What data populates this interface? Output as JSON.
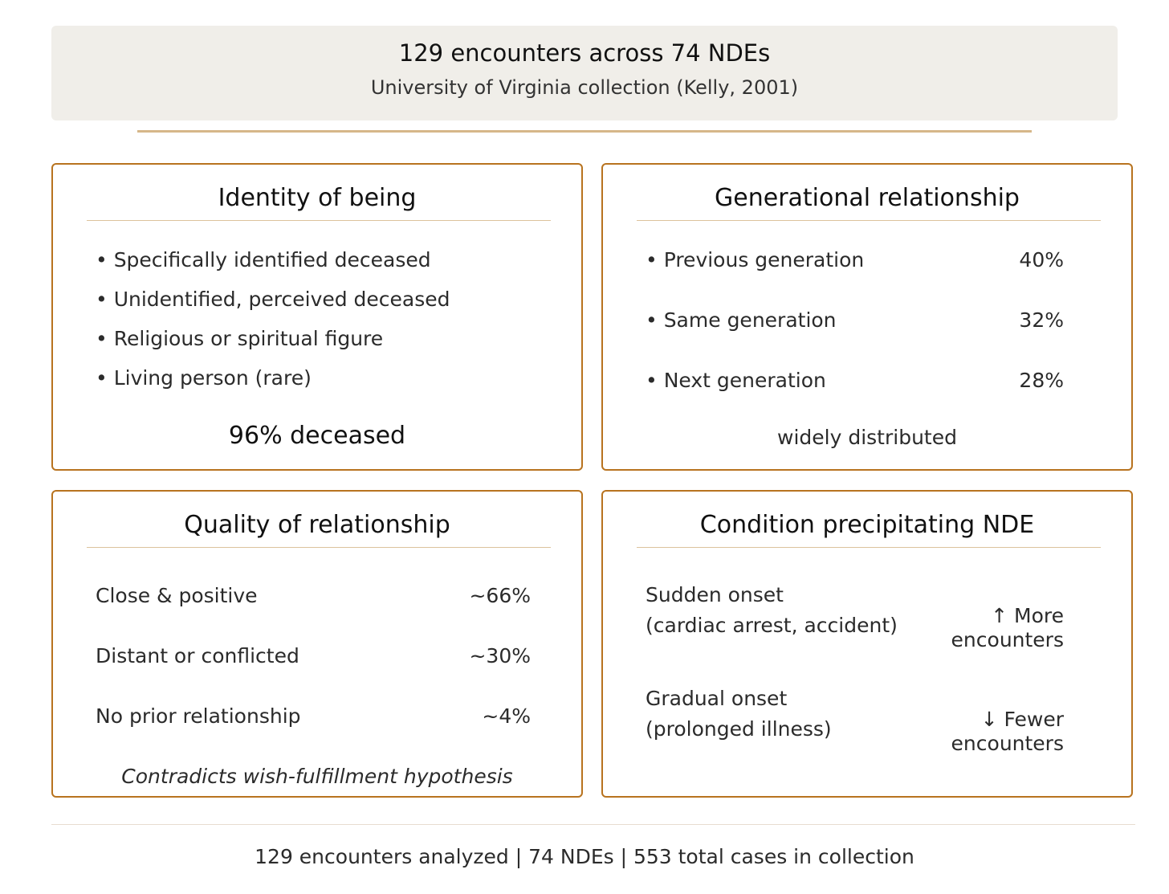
{
  "header": {
    "title": "129 encounters across 74 NDEs",
    "subtitle": "University of Virginia collection (Kelly, 2001)"
  },
  "panels": {
    "identity": {
      "title": "Identity of being",
      "items": [
        "• Specifically identified deceased",
        "• Unidentified, perceived deceased",
        "• Religious or spiritual figure",
        "• Living person (rare)"
      ],
      "summary": "96% deceased"
    },
    "generational": {
      "title": "Generational relationship",
      "rows": [
        {
          "label": "• Previous generation",
          "value": "40%"
        },
        {
          "label": "• Same generation",
          "value": "32%"
        },
        {
          "label": "• Next generation",
          "value": "28%"
        }
      ],
      "note": "widely distributed"
    },
    "quality": {
      "title": "Quality of relationship",
      "rows": [
        {
          "label": "Close & positive",
          "value": "~66%"
        },
        {
          "label": "Distant or conflicted",
          "value": "~30%"
        },
        {
          "label": "No prior relationship",
          "value": "~4%"
        }
      ],
      "note": "Contradicts wish-fulfillment hypothesis"
    },
    "condition": {
      "title": "Condition precipitating NDE",
      "rows": [
        {
          "line1": "Sudden onset",
          "line2": "(cardiac arrest, accident)",
          "effect1": "↑ More",
          "effect2": "encounters"
        },
        {
          "line1": "Gradual onset",
          "line2": "(prolonged illness)",
          "effect1": "↓ Fewer",
          "effect2": "encounters"
        }
      ]
    }
  },
  "footer": "129 encounters analyzed | 74 NDEs | 553 total cases in collection"
}
